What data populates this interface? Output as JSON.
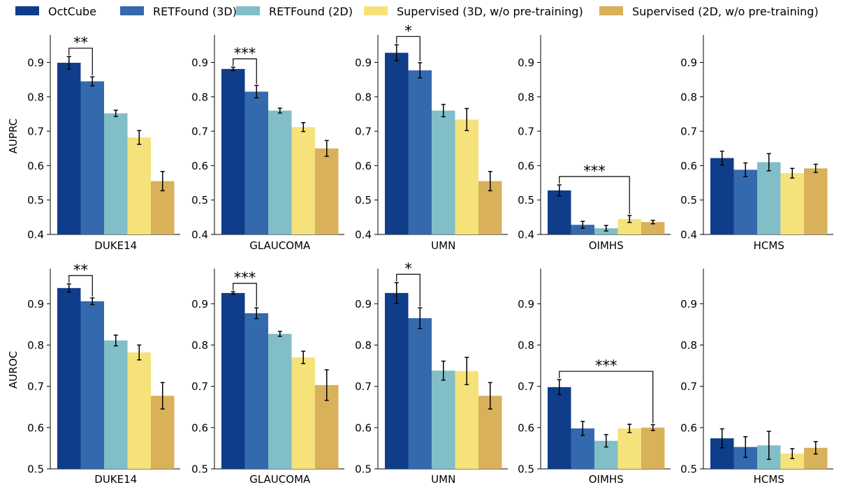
{
  "chart_data": {
    "type": "bar",
    "legend": {
      "placement": "top",
      "entries": [
        {
          "name": "OctCube",
          "color": "#0f3d8a"
        },
        {
          "name": "RETFound (3D)",
          "color": "#3569ad"
        },
        {
          "name": "RETFound (2D)",
          "color": "#82bec8"
        },
        {
          "name": "Supervised (3D, w/o pre-training)",
          "color": "#f6e27a"
        },
        {
          "name": "Supervised (2D, w/o pre-training)",
          "color": "#d8b15a"
        }
      ]
    },
    "rows": [
      {
        "ylabel": "AUPRC",
        "ylim": [
          0.4,
          0.98
        ],
        "yticks": [
          "0.4",
          "0.5",
          "0.6",
          "0.7",
          "0.8",
          "0.9"
        ],
        "panels": [
          {
            "category": "DUKE14",
            "values": [
              0.899,
              0.845,
              0.752,
              0.682,
              0.555
            ],
            "errors": [
              0.018,
              0.013,
              0.009,
              0.02,
              0.028
            ],
            "significance": {
              "label": "**",
              "from": 0,
              "to": 1
            }
          },
          {
            "category": "GLAUCOMA",
            "values": [
              0.881,
              0.815,
              0.76,
              0.712,
              0.65
            ],
            "errors": [
              0.005,
              0.018,
              0.007,
              0.013,
              0.023
            ],
            "significance": {
              "label": "***",
              "from": 0,
              "to": 1
            }
          },
          {
            "category": "UMN",
            "values": [
              0.928,
              0.877,
              0.76,
              0.734,
              0.555
            ],
            "errors": [
              0.023,
              0.022,
              0.018,
              0.032,
              0.028
            ],
            "significance": {
              "label": "*",
              "from": 0,
              "to": 1
            }
          },
          {
            "category": "OIMHS",
            "values": [
              0.528,
              0.428,
              0.418,
              0.445,
              0.436
            ],
            "errors": [
              0.016,
              0.01,
              0.008,
              0.01,
              0.005
            ],
            "significance": {
              "label": "***",
              "from": 0,
              "to": 3
            }
          },
          {
            "category": "HCMS",
            "values": [
              0.622,
              0.588,
              0.61,
              0.578,
              0.592
            ],
            "errors": [
              0.02,
              0.02,
              0.025,
              0.014,
              0.012
            ],
            "significance": null
          }
        ]
      },
      {
        "ylabel": "AUROC",
        "ylim": [
          0.5,
          0.985
        ],
        "yticks": [
          "0.5",
          "0.6",
          "0.7",
          "0.8",
          "0.9"
        ],
        "panels": [
          {
            "category": "DUKE14",
            "values": [
              0.938,
              0.906,
              0.811,
              0.782,
              0.677
            ],
            "errors": [
              0.01,
              0.008,
              0.013,
              0.018,
              0.032
            ],
            "significance": {
              "label": "**",
              "from": 0,
              "to": 1
            }
          },
          {
            "category": "GLAUCOMA",
            "values": [
              0.926,
              0.877,
              0.827,
              0.77,
              0.703
            ],
            "errors": [
              0.003,
              0.013,
              0.006,
              0.015,
              0.037
            ],
            "significance": {
              "label": "***",
              "from": 0,
              "to": 1
            }
          },
          {
            "category": "UMN",
            "values": [
              0.926,
              0.865,
              0.738,
              0.737,
              0.677
            ],
            "errors": [
              0.025,
              0.025,
              0.023,
              0.033,
              0.032
            ],
            "significance": {
              "label": "*",
              "from": 0,
              "to": 1
            }
          },
          {
            "category": "OIMHS",
            "values": [
              0.698,
              0.598,
              0.568,
              0.598,
              0.6
            ],
            "errors": [
              0.018,
              0.017,
              0.015,
              0.01,
              0.007
            ],
            "significance": {
              "label": "***",
              "from": 0,
              "to": 4
            }
          },
          {
            "category": "HCMS",
            "values": [
              0.574,
              0.553,
              0.557,
              0.537,
              0.551
            ],
            "errors": [
              0.023,
              0.025,
              0.034,
              0.012,
              0.015
            ],
            "significance": null
          }
        ]
      }
    ]
  }
}
